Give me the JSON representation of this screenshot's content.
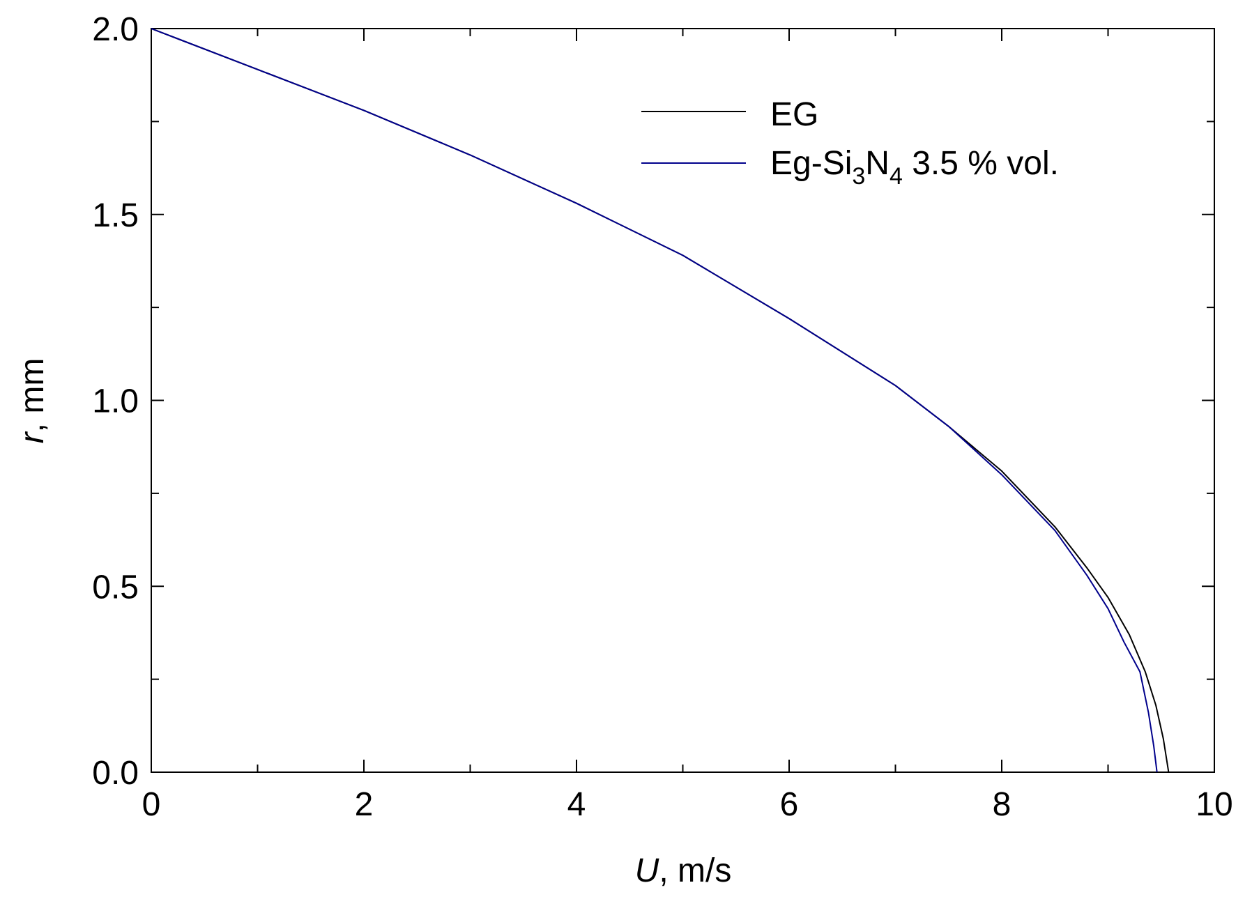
{
  "chart_data": {
    "type": "line",
    "xlabel": {
      "var": "U",
      "unit": ", m/s"
    },
    "ylabel": {
      "var": "r",
      "unit": ", mm"
    },
    "xlim": [
      0,
      10
    ],
    "ylim": [
      0,
      2
    ],
    "xticks": [
      0,
      2,
      4,
      6,
      8,
      10
    ],
    "xtick_labels": [
      "0",
      "2",
      "4",
      "6",
      "8",
      "10"
    ],
    "xminor": [
      1,
      3,
      5,
      7,
      9
    ],
    "yticks": [
      0,
      0.5,
      1.0,
      1.5,
      2.0
    ],
    "ytick_labels": [
      "0.0",
      "0.5",
      "1.0",
      "1.5",
      "2.0"
    ],
    "yminor": [
      0.25,
      0.75,
      1.25,
      1.75
    ],
    "grid": false,
    "legend_position": "top-right",
    "series": [
      {
        "name": "EG",
        "color": "#000000",
        "x": [
          0,
          1,
          2,
          3,
          4,
          5,
          6,
          7,
          7.5,
          8,
          8.5,
          8.8,
          9.0,
          9.2,
          9.35,
          9.45,
          9.52,
          9.57
        ],
        "y": [
          2.0,
          1.89,
          1.78,
          1.66,
          1.53,
          1.39,
          1.22,
          1.04,
          0.93,
          0.81,
          0.66,
          0.55,
          0.47,
          0.37,
          0.27,
          0.18,
          0.09,
          0.0
        ]
      },
      {
        "name_parts": [
          {
            "text": "Eg-Si",
            "sub": false
          },
          {
            "text": "3",
            "sub": true
          },
          {
            "text": "N",
            "sub": false
          },
          {
            "text": "4",
            "sub": true
          },
          {
            "text": " 3.5 % vol.",
            "sub": false
          }
        ],
        "color": "#00008b",
        "x": [
          0,
          1,
          2,
          3,
          4,
          5,
          6,
          7,
          7.5,
          8,
          8.5,
          8.8,
          9.0,
          9.15,
          9.3,
          9.38,
          9.43,
          9.46
        ],
        "y": [
          2.0,
          1.89,
          1.78,
          1.66,
          1.53,
          1.39,
          1.22,
          1.04,
          0.93,
          0.8,
          0.65,
          0.53,
          0.44,
          0.35,
          0.27,
          0.16,
          0.07,
          0.0
        ]
      }
    ]
  }
}
